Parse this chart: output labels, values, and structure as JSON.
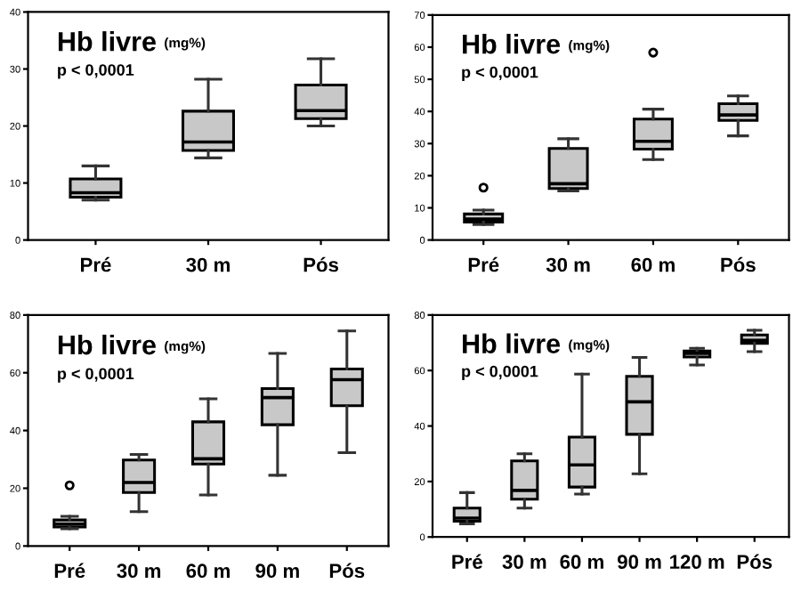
{
  "chart_data": [
    {
      "type": "box",
      "title": "Hb livre",
      "annotations": [
        "(mg%)",
        "p < 0,0001"
      ],
      "categories": [
        "Pré",
        "30 m",
        "Pós"
      ],
      "ylim": [
        0,
        40
      ],
      "yticks": [
        0,
        10,
        20,
        30,
        40
      ],
      "grid": false,
      "color": "#c8c8c8",
      "boxes": [
        {
          "low": 7.0,
          "q1": 7.5,
          "median": 8.3,
          "q3": 10.7,
          "high": 13
        },
        {
          "low": 14.4,
          "q1": 15.7,
          "median": 17.2,
          "q3": 22.6,
          "high": 28.2
        },
        {
          "low": 20,
          "q1": 21.3,
          "median": 22.7,
          "q3": 27.2,
          "high": 31.8
        }
      ]
    },
    {
      "type": "box",
      "title": "Hb livre",
      "annotations": [
        "(mg%)",
        "p < 0,0001"
      ],
      "categories": [
        "Pré",
        "30 m",
        "60 m",
        "Pós"
      ],
      "ylim": [
        0,
        70
      ],
      "yticks": [
        0,
        10,
        20,
        30,
        40,
        50,
        60,
        70
      ],
      "grid": false,
      "color": "#c8c8c8",
      "boxes": [
        {
          "low": 4.8,
          "q1": 5.6,
          "median": 6.5,
          "q3": 8.1,
          "high": 9.3,
          "outliers": [
            16.3
          ]
        },
        {
          "low": 15.3,
          "q1": 16,
          "median": 17.5,
          "q3": 28.5,
          "high": 31.5
        },
        {
          "low": 25,
          "q1": 28.3,
          "median": 30.7,
          "q3": 37.6,
          "high": 40.7,
          "outliers": [
            58.3
          ]
        },
        {
          "low": 32.4,
          "q1": 37.2,
          "median": 38.9,
          "q3": 42.4,
          "high": 44.8
        }
      ]
    },
    {
      "type": "box",
      "title": "Hb livre",
      "annotations": [
        "(mg%)",
        "p < 0,0001"
      ],
      "categories": [
        "Pré",
        "30 m",
        "60 m",
        "90 m",
        "Pós"
      ],
      "ylim": [
        0,
        80
      ],
      "yticks": [
        0,
        20,
        40,
        60,
        80
      ],
      "grid": false,
      "color": "#c8c8c8",
      "boxes": [
        {
          "low": 6,
          "q1": 6.6,
          "median": 7.6,
          "q3": 9,
          "high": 10.3,
          "outliers": [
            21
          ]
        },
        {
          "low": 11.9,
          "q1": 18.5,
          "median": 22,
          "q3": 29.8,
          "high": 31.7
        },
        {
          "low": 17.7,
          "q1": 28.4,
          "median": 30.2,
          "q3": 43,
          "high": 51
        },
        {
          "low": 24.5,
          "q1": 42,
          "median": 51.4,
          "q3": 54.5,
          "high": 66.7
        },
        {
          "low": 32.3,
          "q1": 48.6,
          "median": 57.6,
          "q3": 61.3,
          "high": 74.5
        }
      ]
    },
    {
      "type": "box",
      "title": "Hb livre",
      "annotations": [
        "(mg%)",
        "p < 0,0001"
      ],
      "categories": [
        "Pré",
        "30 m",
        "60 m",
        "90 m",
        "120 m",
        "Pós"
      ],
      "ylim": [
        0,
        80
      ],
      "yticks": [
        0,
        20,
        40,
        60,
        80
      ],
      "grid": false,
      "color": "#c8c8c8",
      "boxes": [
        {
          "low": 4.7,
          "q1": 5.7,
          "median": 6.8,
          "q3": 10.4,
          "high": 16
        },
        {
          "low": 10.4,
          "q1": 13.6,
          "median": 16.8,
          "q3": 27.4,
          "high": 30
        },
        {
          "low": 15.5,
          "q1": 18,
          "median": 26,
          "q3": 36,
          "high": 58.7
        },
        {
          "low": 22.8,
          "q1": 37,
          "median": 48.7,
          "q3": 57.9,
          "high": 64.7
        },
        {
          "low": 62,
          "q1": 64.9,
          "median": 66.2,
          "q3": 67,
          "high": 68
        },
        {
          "low": 66.8,
          "q1": 69.8,
          "median": 70.9,
          "q3": 72.8,
          "high": 74.5
        }
      ]
    }
  ]
}
